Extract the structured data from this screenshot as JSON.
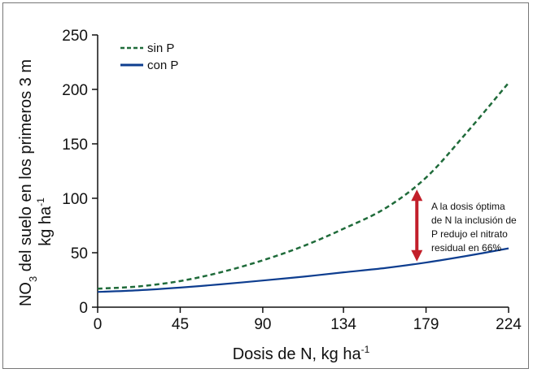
{
  "chart_data": {
    "type": "line",
    "x_ticks": [
      "0",
      "45",
      "90",
      "134",
      "179",
      "224"
    ],
    "y_ticks": [
      "0",
      "50",
      "100",
      "150",
      "200",
      "250"
    ],
    "xlim": [
      0,
      224
    ],
    "ylim": [
      0,
      250
    ],
    "xlabel": "Dosis de N, kg ha",
    "xlabel_sup": "-1",
    "ylabel_prefix": "NO",
    "ylabel_sub": "3",
    "ylabel_main": " del suelo en los primeros 3 m",
    "ylabel_line2": "kg ha",
    "ylabel_line2_sup": "-1",
    "legend": [
      {
        "label": "sin P",
        "style": "dashed",
        "color": "#1f6b3a"
      },
      {
        "label": "con P",
        "style": "solid",
        "color": "#0d3d8f"
      }
    ],
    "series": [
      {
        "name": "sin P",
        "color": "#1f6b3a",
        "dash": true,
        "x": [
          0,
          22,
          45,
          67,
          90,
          112,
          134,
          157,
          179,
          201,
          224
        ],
        "y": [
          17,
          19,
          24,
          32,
          43,
          56,
          72,
          91,
          119,
          160,
          206
        ]
      },
      {
        "name": "con P",
        "color": "#0d3d8f",
        "dash": false,
        "x": [
          0,
          22,
          45,
          67,
          90,
          112,
          134,
          157,
          179,
          201,
          224
        ],
        "y": [
          14,
          15.5,
          18,
          21,
          24.5,
          28,
          32,
          36,
          41,
          47,
          54
        ]
      }
    ],
    "annotation": {
      "lines": [
        "A la dosis óptima",
        "de N la inclusión de",
        "P redujo el nitrato",
        "residual en 66%"
      ],
      "arrow_x": 174,
      "arrow_y_top": 108,
      "arrow_y_bottom": 42,
      "arrow_color": "#c21f2a"
    }
  }
}
